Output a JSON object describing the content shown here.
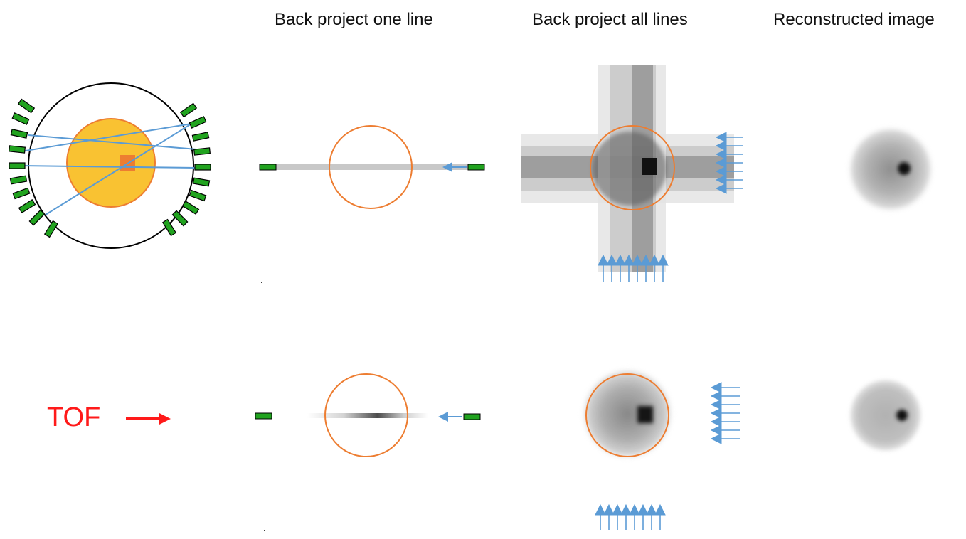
{
  "titles": {
    "col1": "Back project one line",
    "col2": "Back project all lines",
    "col3": "Reconstructed image"
  },
  "tof": {
    "label": "TOF",
    "color": "#ff1a1a"
  },
  "colors": {
    "detector": "#21a31f",
    "object_fill": "#f9c232",
    "object_edge": "#ed7d31",
    "source": "#ed7d31",
    "lor": "#5b9bd5",
    "arrow": "#5b9bd5",
    "ring": "#000000"
  }
}
